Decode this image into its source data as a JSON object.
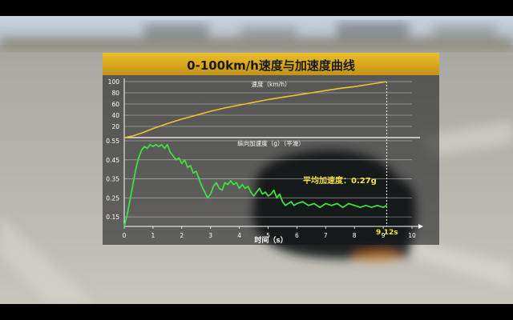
{
  "chart_data": {
    "title": "0-100km/h速度与加速度曲线",
    "xlabel": "时间（s）",
    "x_ticks": [
      0,
      1,
      2,
      3,
      4,
      5,
      6,
      7,
      8,
      9,
      10
    ],
    "xlim": [
      0,
      10
    ],
    "marker": {
      "x": 9.12,
      "label": "9.12s"
    },
    "panels": [
      {
        "type": "line",
        "label": "速度（km/h）",
        "ylim": [
          0,
          100
        ],
        "y_ticks": [
          20,
          40,
          60,
          80,
          100
        ],
        "color": "#f2c230",
        "series": {
          "x": [
            0,
            0.3,
            0.6,
            1.0,
            1.5,
            2.0,
            2.5,
            3.0,
            3.5,
            4.0,
            4.5,
            5.0,
            5.5,
            6.0,
            6.5,
            7.0,
            7.5,
            8.0,
            8.5,
            9.12
          ],
          "y": [
            0,
            3,
            8,
            16,
            25,
            33,
            40,
            47,
            53,
            58,
            63,
            68,
            72,
            76,
            80,
            84,
            88,
            91,
            95,
            100
          ]
        }
      },
      {
        "type": "line",
        "label": "纵向加速度（g）（平滑）",
        "ylim": [
          0.1,
          0.55
        ],
        "y_ticks": [
          0.15,
          0.25,
          0.35,
          0.45,
          0.55
        ],
        "color": "#3fe03f",
        "annotation": "平均加速度：0.27g",
        "series": {
          "x": [
            0,
            0.1,
            0.2,
            0.3,
            0.4,
            0.5,
            0.6,
            0.7,
            0.8,
            0.9,
            1.0,
            1.1,
            1.2,
            1.3,
            1.4,
            1.5,
            1.6,
            1.7,
            1.8,
            1.9,
            2.0,
            2.1,
            2.2,
            2.3,
            2.4,
            2.5,
            2.6,
            2.7,
            2.8,
            2.9,
            3.0,
            3.1,
            3.2,
            3.3,
            3.4,
            3.5,
            3.6,
            3.7,
            3.8,
            3.9,
            4.0,
            4.1,
            4.2,
            4.3,
            4.4,
            4.5,
            4.6,
            4.7,
            4.8,
            4.9,
            5.0,
            5.1,
            5.2,
            5.3,
            5.4,
            5.5,
            5.6,
            5.7,
            5.8,
            5.9,
            6.0,
            6.2,
            6.4,
            6.6,
            6.8,
            7.0,
            7.2,
            7.4,
            7.6,
            7.8,
            8.0,
            8.2,
            8.4,
            8.6,
            8.8,
            9.0,
            9.12
          ],
          "y": [
            0.1,
            0.16,
            0.24,
            0.32,
            0.4,
            0.46,
            0.5,
            0.52,
            0.51,
            0.53,
            0.52,
            0.53,
            0.52,
            0.53,
            0.51,
            0.53,
            0.49,
            0.47,
            0.45,
            0.46,
            0.43,
            0.45,
            0.41,
            0.42,
            0.38,
            0.39,
            0.35,
            0.31,
            0.28,
            0.25,
            0.27,
            0.31,
            0.33,
            0.3,
            0.29,
            0.33,
            0.32,
            0.34,
            0.32,
            0.33,
            0.3,
            0.32,
            0.3,
            0.31,
            0.28,
            0.26,
            0.28,
            0.3,
            0.27,
            0.28,
            0.26,
            0.27,
            0.29,
            0.25,
            0.27,
            0.23,
            0.21,
            0.22,
            0.23,
            0.21,
            0.22,
            0.23,
            0.21,
            0.22,
            0.2,
            0.22,
            0.21,
            0.22,
            0.2,
            0.22,
            0.21,
            0.2,
            0.21,
            0.2,
            0.21,
            0.2,
            0.21
          ]
        }
      }
    ]
  }
}
